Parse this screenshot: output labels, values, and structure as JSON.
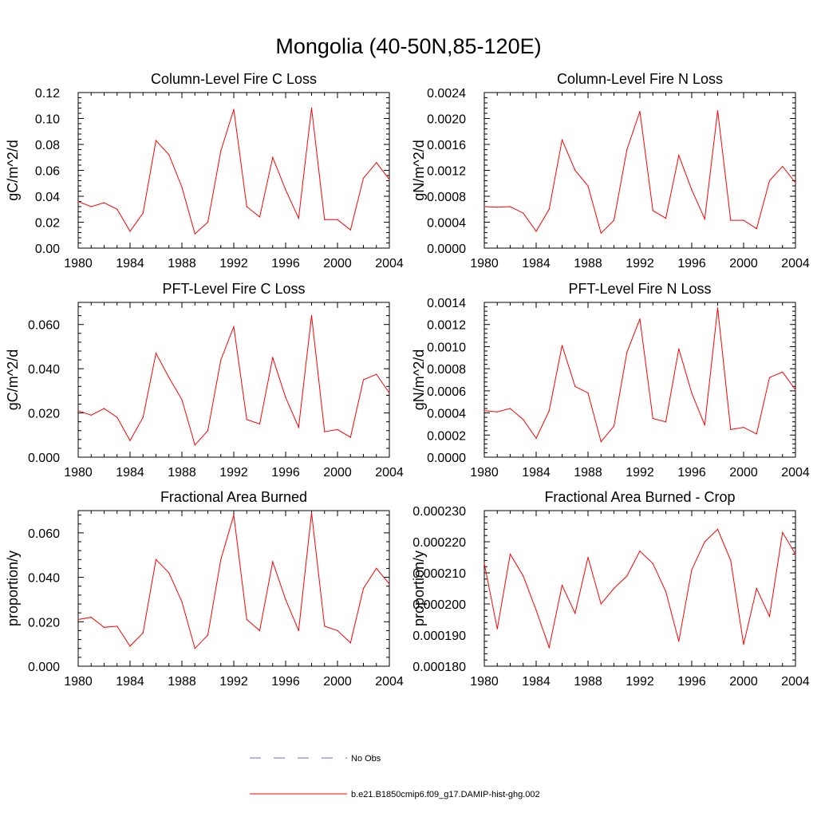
{
  "figure": {
    "title": "Mongolia (40-50N,85-120E)",
    "line_color": "#ff0000",
    "obs_color": "#6a6ad8"
  },
  "legend": {
    "entries": [
      {
        "label": "No Obs",
        "style": "dashed",
        "color": "#6a6ad8"
      },
      {
        "label": "b.e21.B1850cmip6.f09_g17.DAMIP-hist-ghg.002",
        "style": "solid",
        "color": "#ff0000"
      }
    ]
  },
  "chart_data": [
    {
      "type": "line",
      "title": "Column-Level Fire C Loss",
      "xlabel": "",
      "ylabel": "gC/m^2/d",
      "xlim": [
        1980,
        2004
      ],
      "ylim": [
        0,
        0.12
      ],
      "x_ticks": [
        "1980",
        "1984",
        "1988",
        "1992",
        "1996",
        "2000",
        "2004"
      ],
      "y_ticks": [
        "0.00",
        "0.02",
        "0.04",
        "0.06",
        "0.08",
        "0.10",
        "0.12"
      ],
      "x": [
        1980,
        1981,
        1982,
        1983,
        1984,
        1985,
        1986,
        1987,
        1988,
        1989,
        1990,
        1991,
        1992,
        1993,
        1994,
        1995,
        1996,
        1997,
        1998,
        1999,
        2000,
        2001,
        2002,
        2003,
        2004
      ],
      "series": [
        {
          "values": [
            0.036,
            0.032,
            0.035,
            0.03,
            0.013,
            0.027,
            0.083,
            0.072,
            0.047,
            0.011,
            0.02,
            0.075,
            0.107,
            0.032,
            0.024,
            0.07,
            0.045,
            0.023,
            0.108,
            0.022,
            0.022,
            0.014,
            0.054,
            0.066,
            0.053
          ]
        }
      ]
    },
    {
      "type": "line",
      "title": "Column-Level Fire N Loss",
      "xlabel": "",
      "ylabel": "gN/m^2/d",
      "xlim": [
        1980,
        2004
      ],
      "ylim": [
        0,
        0.0024
      ],
      "x_ticks": [
        "1980",
        "1984",
        "1988",
        "1992",
        "1996",
        "2000",
        "2004"
      ],
      "y_ticks": [
        "0.0000",
        "0.0004",
        "0.0008",
        "0.0012",
        "0.0016",
        "0.0020",
        "0.0024"
      ],
      "x": [
        1980,
        1981,
        1982,
        1983,
        1984,
        1985,
        1986,
        1987,
        1988,
        1989,
        1990,
        1991,
        1992,
        1993,
        1994,
        1995,
        1996,
        1997,
        1998,
        1999,
        2000,
        2001,
        2002,
        2003,
        2004
      ],
      "series": [
        {
          "values": [
            0.00064,
            0.00063,
            0.00064,
            0.00054,
            0.00026,
            0.0006,
            0.00167,
            0.0012,
            0.00096,
            0.00023,
            0.00043,
            0.00152,
            0.00211,
            0.00058,
            0.00046,
            0.00143,
            0.0009,
            0.00045,
            0.00212,
            0.00043,
            0.00043,
            0.0003,
            0.00104,
            0.00126,
            0.00101
          ]
        }
      ]
    },
    {
      "type": "line",
      "title": "PFT-Level Fire C Loss",
      "xlabel": "",
      "ylabel": "gC/m^2/d",
      "xlim": [
        1980,
        2004
      ],
      "ylim": [
        0,
        0.07
      ],
      "x_ticks": [
        "1980",
        "1984",
        "1988",
        "1992",
        "1996",
        "2000",
        "2004"
      ],
      "y_ticks": [
        "0.000",
        "0.020",
        "0.040",
        "0.060"
      ],
      "x": [
        1980,
        1981,
        1982,
        1983,
        1984,
        1985,
        1986,
        1987,
        1988,
        1989,
        1990,
        1991,
        1992,
        1993,
        1994,
        1995,
        1996,
        1997,
        1998,
        1999,
        2000,
        2001,
        2002,
        2003,
        2004
      ],
      "series": [
        {
          "values": [
            0.021,
            0.019,
            0.022,
            0.018,
            0.0075,
            0.018,
            0.047,
            0.036,
            0.026,
            0.0055,
            0.012,
            0.044,
            0.059,
            0.017,
            0.015,
            0.045,
            0.027,
            0.0135,
            0.064,
            0.0115,
            0.0125,
            0.009,
            0.035,
            0.0375,
            0.029
          ]
        }
      ]
    },
    {
      "type": "line",
      "title": "PFT-Level Fire N Loss",
      "xlabel": "",
      "ylabel": "gN/m^2/d",
      "xlim": [
        1980,
        2004
      ],
      "ylim": [
        0,
        0.0014
      ],
      "x_ticks": [
        "1980",
        "1984",
        "1988",
        "1992",
        "1996",
        "2000",
        "2004"
      ],
      "y_ticks": [
        "0.0000",
        "0.0002",
        "0.0004",
        "0.0006",
        "0.0008",
        "0.0010",
        "0.0012",
        "0.0014"
      ],
      "x": [
        1980,
        1981,
        1982,
        1983,
        1984,
        1985,
        1986,
        1987,
        1988,
        1989,
        1990,
        1991,
        1992,
        1993,
        1994,
        1995,
        1996,
        1997,
        1998,
        1999,
        2000,
        2001,
        2002,
        2003,
        2004
      ],
      "series": [
        {
          "values": [
            0.00042,
            0.00041,
            0.00044,
            0.00034,
            0.00017,
            0.00042,
            0.00101,
            0.00064,
            0.00058,
            0.00014,
            0.00028,
            0.00095,
            0.00125,
            0.00035,
            0.00032,
            0.00098,
            0.00058,
            0.00029,
            0.00135,
            0.00025,
            0.00027,
            0.00021,
            0.00072,
            0.00077,
            0.00061
          ]
        }
      ]
    },
    {
      "type": "line",
      "title": "Fractional Area Burned",
      "xlabel": "",
      "ylabel": "proportion/y",
      "xlim": [
        1980,
        2004
      ],
      "ylim": [
        0,
        0.07
      ],
      "x_ticks": [
        "1980",
        "1984",
        "1988",
        "1992",
        "1996",
        "2000",
        "2004"
      ],
      "y_ticks": [
        "0.000",
        "0.020",
        "0.040",
        "0.060"
      ],
      "x": [
        1980,
        1981,
        1982,
        1983,
        1984,
        1985,
        1986,
        1987,
        1988,
        1989,
        1990,
        1991,
        1992,
        1993,
        1994,
        1995,
        1996,
        1997,
        1998,
        1999,
        2000,
        2001,
        2002,
        2003,
        2004
      ],
      "series": [
        {
          "values": [
            0.021,
            0.022,
            0.0175,
            0.018,
            0.009,
            0.015,
            0.048,
            0.042,
            0.029,
            0.008,
            0.014,
            0.048,
            0.068,
            0.021,
            0.016,
            0.047,
            0.03,
            0.016,
            0.069,
            0.018,
            0.016,
            0.0105,
            0.035,
            0.044,
            0.037
          ]
        }
      ]
    },
    {
      "type": "line",
      "title": "Fractional Area Burned - Crop",
      "xlabel": "",
      "ylabel": "proportion/y",
      "xlim": [
        1980,
        2004
      ],
      "ylim": [
        0.00018,
        0.00023
      ],
      "x_ticks": [
        "1980",
        "1984",
        "1988",
        "1992",
        "1996",
        "2000",
        "2004"
      ],
      "y_ticks": [
        "0.000180",
        "0.000190",
        "0.000200",
        "0.000210",
        "0.000220",
        "0.000230"
      ],
      "x": [
        1980,
        1981,
        1982,
        1983,
        1984,
        1985,
        1986,
        1987,
        1988,
        1989,
        1990,
        1991,
        1992,
        1993,
        1994,
        1995,
        1996,
        1997,
        1998,
        1999,
        2000,
        2001,
        2002,
        2003,
        2004
      ],
      "series": [
        {
          "values": [
            0.000213,
            0.000192,
            0.000216,
            0.000209,
            0.000198,
            0.000186,
            0.000206,
            0.000197,
            0.000215,
            0.0002,
            0.000205,
            0.000209,
            0.000217,
            0.000213,
            0.000204,
            0.000188,
            0.000211,
            0.00022,
            0.000224,
            0.000214,
            0.000187,
            0.000205,
            0.000196,
            0.000223,
            0.000216
          ]
        }
      ]
    }
  ]
}
